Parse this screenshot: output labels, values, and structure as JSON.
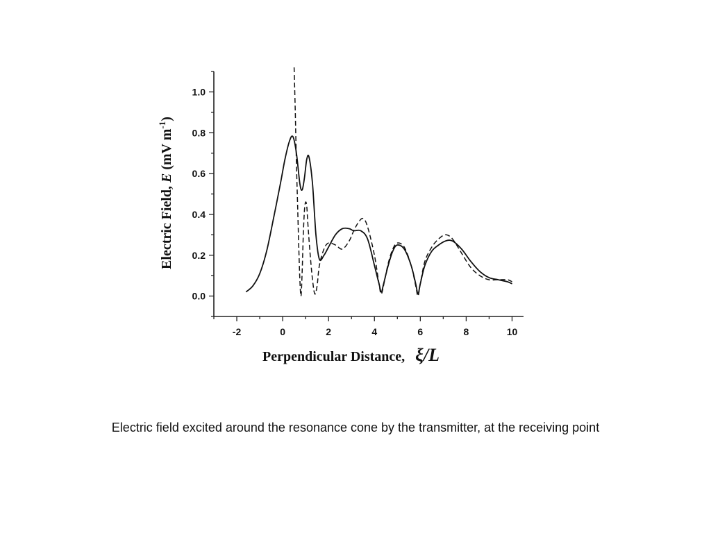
{
  "caption": "Electric field excited around the resonance cone by the transmitter, at the receiving point",
  "chart_data": {
    "type": "line",
    "title": "",
    "xlabel_text": "Perpendicular Distance,",
    "xlabel_symbol": "ξ/L",
    "ylabel_parts": [
      "Electric Field, ",
      "E",
      " (mV m",
      "-1",
      ")"
    ],
    "xlim": [
      -3,
      10.5
    ],
    "ylim": [
      -0.1,
      1.1
    ],
    "xticks": [
      -2,
      0,
      2,
      4,
      6,
      8,
      10
    ],
    "yticks": [
      0.0,
      0.2,
      0.4,
      0.6,
      0.8,
      1.0
    ],
    "ytick_labels": [
      "0.0",
      "0.2",
      "0.4",
      "0.6",
      "0.8",
      "1.0"
    ],
    "grid": false,
    "legend": "none",
    "series": [
      {
        "style": "solid",
        "x": [
          -1.6,
          -1.3,
          -1.0,
          -0.7,
          -0.4,
          -0.1,
          0.1,
          0.3,
          0.45,
          0.6,
          0.75,
          0.85,
          0.95,
          1.05,
          1.15,
          1.3,
          1.45,
          1.6,
          1.8,
          2.0,
          2.3,
          2.6,
          2.9,
          3.1,
          3.4,
          3.7,
          4.0,
          4.2,
          4.3,
          4.4,
          4.6,
          4.8,
          5.0,
          5.3,
          5.6,
          5.8,
          5.9,
          6.0,
          6.2,
          6.5,
          6.8,
          7.1,
          7.4,
          7.8,
          8.2,
          8.6,
          9.0,
          9.4,
          9.8,
          10.0
        ],
        "y": [
          0.02,
          0.05,
          0.11,
          0.22,
          0.38,
          0.55,
          0.67,
          0.76,
          0.78,
          0.7,
          0.55,
          0.52,
          0.58,
          0.67,
          0.68,
          0.55,
          0.3,
          0.18,
          0.2,
          0.24,
          0.3,
          0.33,
          0.33,
          0.32,
          0.32,
          0.28,
          0.15,
          0.06,
          0.02,
          0.06,
          0.15,
          0.22,
          0.25,
          0.23,
          0.15,
          0.06,
          0.01,
          0.06,
          0.15,
          0.22,
          0.25,
          0.27,
          0.27,
          0.23,
          0.17,
          0.12,
          0.09,
          0.08,
          0.07,
          0.06
        ]
      },
      {
        "style": "dashed",
        "x": [
          0.5,
          0.55,
          0.6,
          0.65,
          0.7,
          0.75,
          0.8,
          0.85,
          0.9,
          0.95,
          1.0,
          1.05,
          1.1,
          1.2,
          1.3,
          1.4,
          1.5,
          1.6,
          1.8,
          2.0,
          2.3,
          2.6,
          2.9,
          3.1,
          3.3,
          3.5,
          3.7,
          4.0,
          4.2,
          4.3,
          4.45,
          4.6,
          4.8,
          5.0,
          5.3,
          5.6,
          5.8,
          5.9,
          6.0,
          6.2,
          6.5,
          6.8,
          7.1,
          7.4,
          7.8,
          8.2,
          8.6,
          9.0,
          9.4,
          9.8,
          10.0
        ],
        "y": [
          1.12,
          0.9,
          0.65,
          0.45,
          0.25,
          0.08,
          0.0,
          0.12,
          0.3,
          0.42,
          0.46,
          0.44,
          0.35,
          0.2,
          0.08,
          0.01,
          0.05,
          0.15,
          0.23,
          0.26,
          0.25,
          0.23,
          0.27,
          0.32,
          0.36,
          0.38,
          0.34,
          0.2,
          0.06,
          0.01,
          0.08,
          0.16,
          0.23,
          0.26,
          0.24,
          0.15,
          0.05,
          0.0,
          0.06,
          0.17,
          0.24,
          0.28,
          0.3,
          0.28,
          0.21,
          0.14,
          0.1,
          0.08,
          0.08,
          0.08,
          0.07
        ]
      }
    ]
  }
}
